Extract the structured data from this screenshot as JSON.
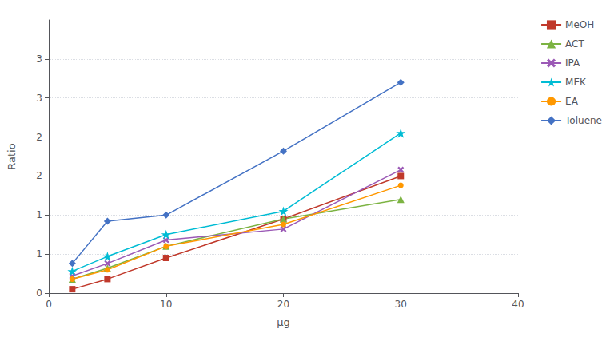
{
  "chart_data": {
    "type": "line",
    "xlabel": "μg",
    "ylabel": "Ratio",
    "x": [
      2,
      5,
      10,
      20,
      30
    ],
    "series": [
      {
        "name": "MeOH",
        "color": "#C0392B",
        "marker": "square",
        "values": [
          0.05,
          0.18,
          0.45,
          0.95,
          1.5
        ]
      },
      {
        "name": "ACT",
        "color": "#7CB342",
        "marker": "triangle",
        "values": [
          0.18,
          0.32,
          0.6,
          0.95,
          1.2
        ]
      },
      {
        "name": "IPA",
        "color": "#9B59B6",
        "marker": "x",
        "values": [
          0.22,
          0.38,
          0.68,
          0.82,
          1.58
        ]
      },
      {
        "name": "MEK",
        "color": "#00BCD4",
        "marker": "star",
        "values": [
          0.28,
          0.47,
          0.75,
          1.05,
          2.05
        ]
      },
      {
        "name": "EA",
        "color": "#FF9800",
        "marker": "circle",
        "values": [
          0.18,
          0.3,
          0.6,
          0.88,
          1.38
        ]
      },
      {
        "name": "Toluene",
        "color": "#4472C4",
        "marker": "diamond",
        "values": [
          0.38,
          0.92,
          1.0,
          1.82,
          2.7
        ]
      }
    ],
    "xlim": [
      0,
      40
    ],
    "xticks": [
      0,
      10,
      20,
      30,
      40
    ],
    "ylim": [
      0,
      3.5
    ],
    "yticks": [
      0,
      {
        "value": 0.5,
        "label": "1"
      },
      1,
      {
        "value": 1.5,
        "label": "2"
      },
      2,
      {
        "value": 2.5,
        "label": "3"
      },
      3
    ],
    "grid": true,
    "legend": "right"
  }
}
